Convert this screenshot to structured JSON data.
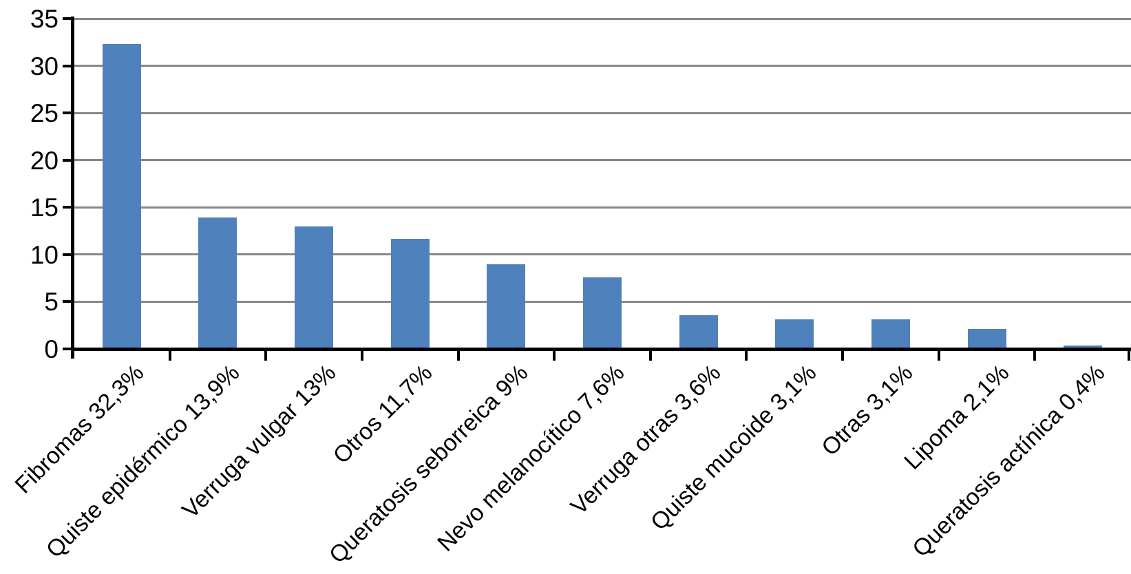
{
  "chart_data": {
    "type": "bar",
    "title": "",
    "xlabel": "",
    "ylabel": "",
    "categories": [
      "Fibromas 32,3%",
      "Quiste epidérmico 13,9%",
      "Verruga vulgar 13%",
      "Otros 11,7%",
      "Queratosis seborreica 9%",
      "Nevo melanocítico 7,6%",
      "Verruga otras 3,6%",
      "Quiste mucoide 3,1%",
      "Otras 3,1%",
      "Lipoma 2,1%",
      "Queratosis actínica 0,4%"
    ],
    "values": [
      32.3,
      13.9,
      13,
      11.7,
      9,
      7.6,
      3.6,
      3.1,
      3.1,
      2.1,
      0.4
    ],
    "ylim": [
      0,
      35
    ],
    "yticks": [
      0,
      5,
      10,
      15,
      20,
      25,
      30,
      35
    ],
    "grid": true,
    "legend": false,
    "label_rotation_deg": -45,
    "bar_color": "#4f81bd",
    "gridline_color": "#878787",
    "axis_color": "#000000",
    "background_color": "#ffffff"
  }
}
